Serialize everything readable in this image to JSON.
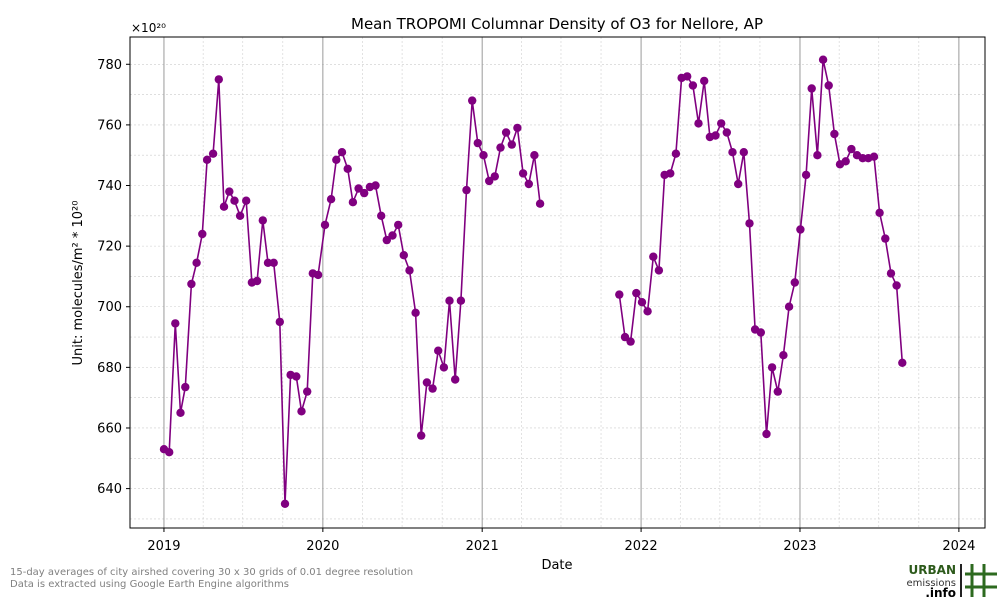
{
  "footer": {
    "note_line1": "15-day averages of city airshed covering 30 x 30 grids of 0.01 degree resolution",
    "note_line2": "Data is extracted using Google Earth Engine algorithms",
    "logo_line1": "URBAN",
    "logo_line2": "emissions",
    "logo_line3": ".info"
  },
  "chart_data": {
    "type": "line",
    "title": "Mean TROPOMI Columnar Density of O3 for Nellore, AP",
    "xlabel": "Date",
    "ylabel": "Unit: molecules/m² * 10²⁰",
    "y_offset_label": "×10²⁰",
    "xlim": [
      "2018-10-15",
      "2024-03-01"
    ],
    "ylim": [
      627,
      789
    ],
    "x_ticks": [
      "2019-01-01",
      "2020-01-01",
      "2021-01-01",
      "2022-01-01",
      "2023-01-01",
      "2024-01-01"
    ],
    "x_tick_labels": [
      "2019",
      "2020",
      "2021",
      "2022",
      "2023",
      "2024"
    ],
    "y_ticks": [
      640,
      660,
      680,
      700,
      720,
      740,
      760,
      780
    ],
    "grid": true,
    "line_color": "#800080",
    "series": [
      {
        "segments": [
          [
            [
              "2019-01-01",
              653
            ],
            [
              "2019-01-13",
              652
            ],
            [
              "2019-01-27",
              694.5
            ],
            [
              "2019-02-08",
              665
            ],
            [
              "2019-02-19",
              673.5
            ],
            [
              "2019-03-05",
              707.5
            ],
            [
              "2019-03-17",
              714.5
            ],
            [
              "2019-03-30",
              724
            ],
            [
              "2019-04-10",
              748.5
            ],
            [
              "2019-04-24",
              750.5
            ],
            [
              "2019-05-07",
              775
            ],
            [
              "2019-05-19",
              733
            ],
            [
              "2019-05-31",
              738
            ],
            [
              "2019-06-12",
              735
            ],
            [
              "2019-06-25",
              730
            ],
            [
              "2019-07-09",
              735
            ],
            [
              "2019-07-22",
              708
            ],
            [
              "2019-08-03",
              708.5
            ],
            [
              "2019-08-16",
              728.5
            ],
            [
              "2019-08-28",
              714.5
            ],
            [
              "2019-09-10",
              714.5
            ],
            [
              "2019-09-24",
              695
            ],
            [
              "2019-10-06",
              635
            ],
            [
              "2019-10-19",
              677.5
            ],
            [
              "2019-11-01",
              677
            ],
            [
              "2019-11-13",
              665.5
            ],
            [
              "2019-11-26",
              672
            ],
            [
              "2019-12-09",
              711
            ],
            [
              "2019-12-21",
              710.5
            ],
            [
              "2020-01-06",
              727
            ],
            [
              "2020-01-20",
              735.5
            ],
            [
              "2020-02-01",
              748.5
            ],
            [
              "2020-02-14",
              751
            ],
            [
              "2020-02-27",
              745.5
            ],
            [
              "2020-03-10",
              734.5
            ],
            [
              "2020-03-23",
              739
            ],
            [
              "2020-04-05",
              737.5
            ],
            [
              "2020-04-18",
              739.5
            ],
            [
              "2020-05-01",
              740
            ],
            [
              "2020-05-14",
              730
            ],
            [
              "2020-05-27",
              722
            ],
            [
              "2020-06-09",
              723.5
            ],
            [
              "2020-06-22",
              727
            ],
            [
              "2020-07-05",
              717
            ],
            [
              "2020-07-18",
              712
            ],
            [
              "2020-08-01",
              698
            ],
            [
              "2020-08-14",
              657.5
            ],
            [
              "2020-08-27",
              675
            ],
            [
              "2020-09-09",
              673
            ],
            [
              "2020-09-22",
              685.5
            ],
            [
              "2020-10-05",
              680
            ],
            [
              "2020-10-18",
              702
            ],
            [
              "2020-10-31",
              676
            ],
            [
              "2020-11-13",
              702
            ],
            [
              "2020-11-26",
              738.5
            ],
            [
              "2020-12-09",
              768
            ],
            [
              "2020-12-22",
              754
            ],
            [
              "2021-01-04",
              750
            ],
            [
              "2021-01-17",
              741.5
            ],
            [
              "2021-01-30",
              743
            ],
            [
              "2021-02-12",
              752.5
            ],
            [
              "2021-02-25",
              757.5
            ],
            [
              "2021-03-10",
              753.5
            ],
            [
              "2021-03-23",
              759
            ],
            [
              "2021-04-05",
              744
            ],
            [
              "2021-04-18",
              740.5
            ],
            [
              "2021-05-01",
              750
            ],
            [
              "2021-05-14",
              734
            ]
          ],
          [
            [
              "2021-11-12",
              704
            ],
            [
              "2021-11-25",
              690
            ],
            [
              "2021-12-08",
              688.5
            ],
            [
              "2021-12-21",
              704.5
            ],
            [
              "2022-01-03",
              701.5
            ],
            [
              "2022-01-16",
              698.5
            ],
            [
              "2022-01-29",
              716.5
            ],
            [
              "2022-02-11",
              712
            ],
            [
              "2022-02-24",
              743.5
            ],
            [
              "2022-03-09",
              744
            ],
            [
              "2022-03-22",
              750.5
            ],
            [
              "2022-04-04",
              775.5
            ],
            [
              "2022-04-17",
              776
            ],
            [
              "2022-04-30",
              773
            ],
            [
              "2022-05-13",
              760.5
            ],
            [
              "2022-05-26",
              774.5
            ],
            [
              "2022-06-08",
              756
            ],
            [
              "2022-06-21",
              756.5
            ],
            [
              "2022-07-04",
              760.5
            ],
            [
              "2022-07-17",
              757.5
            ],
            [
              "2022-07-30",
              751
            ],
            [
              "2022-08-12",
              740.5
            ],
            [
              "2022-08-25",
              751
            ],
            [
              "2022-09-07",
              727.5
            ],
            [
              "2022-09-20",
              692.5
            ],
            [
              "2022-10-03",
              691.5
            ],
            [
              "2022-10-16",
              658
            ],
            [
              "2022-10-29",
              680
            ],
            [
              "2022-11-11",
              672
            ],
            [
              "2022-11-24",
              684
            ],
            [
              "2022-12-07",
              700
            ],
            [
              "2022-12-20",
              708
            ],
            [
              "2023-01-02",
              725.5
            ],
            [
              "2023-01-15",
              743.5
            ],
            [
              "2023-01-28",
              772
            ],
            [
              "2023-02-10",
              750
            ],
            [
              "2023-02-23",
              781.5
            ],
            [
              "2023-03-08",
              773
            ],
            [
              "2023-03-21",
              757
            ],
            [
              "2023-04-03",
              747
            ],
            [
              "2023-04-16",
              748
            ],
            [
              "2023-04-29",
              752
            ],
            [
              "2023-05-12",
              750
            ],
            [
              "2023-05-25",
              749
            ],
            [
              "2023-06-07",
              749
            ],
            [
              "2023-06-20",
              749.5
            ],
            [
              "2023-07-03",
              731
            ],
            [
              "2023-07-16",
              722.5
            ],
            [
              "2023-07-29",
              711
            ],
            [
              "2023-08-11",
              707
            ],
            [
              "2023-08-24",
              681.5
            ]
          ]
        ]
      }
    ]
  }
}
